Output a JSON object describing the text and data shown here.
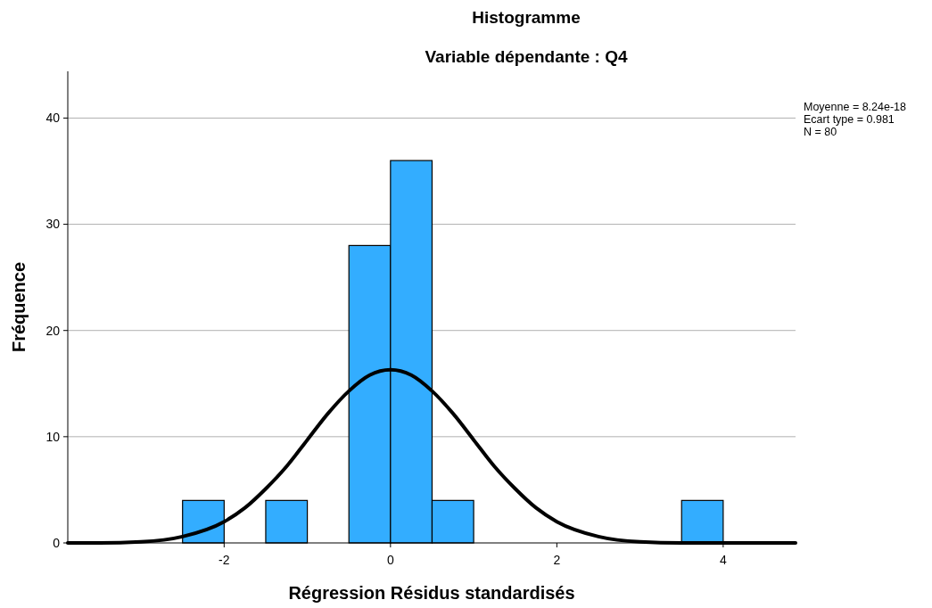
{
  "chart_data": {
    "type": "histogram",
    "title": "Histogramme",
    "subtitle": "Variable dépendante : Q4",
    "xlabel": "Régression Résidus standardisés",
    "ylabel": "Fréquence",
    "annotations": [
      "Moyenne = 8.24e-18",
      "Ecart type = 0.981",
      "N = 80"
    ],
    "xlim": [
      -3.88,
      4.87
    ],
    "xticks": [
      -2,
      0,
      2,
      4
    ],
    "ylim": [
      0,
      44.4
    ],
    "yticks": [
      0,
      10,
      20,
      30,
      40
    ],
    "grid": "y",
    "series": [
      {
        "color": "#33adff",
        "bins": [
          -2.5,
          -2,
          -1.5,
          -1,
          -0.5,
          0,
          0.5,
          1,
          1.5,
          2,
          2.5,
          3,
          3.5,
          4
        ],
        "values": [
          4,
          0,
          4,
          0,
          28,
          36,
          4,
          0,
          0,
          0,
          0,
          0,
          4
        ]
      },
      {
        "type": "line",
        "color": "#000000",
        "x": [
          -3.88,
          -3.5,
          -3,
          -2.5,
          -2,
          -1.75,
          -1.5,
          -1.25,
          -1,
          -0.75,
          -0.5,
          -0.25,
          0,
          0.25,
          0.5,
          0.75,
          1,
          1.25,
          1.5,
          1.75,
          2,
          2.5,
          3,
          3.5,
          4,
          4.87
        ],
        "values": [
          0,
          0,
          0.1,
          0.6,
          2,
          3.3,
          5.1,
          7.2,
          9.7,
          12.2,
          14.3,
          15.8,
          16.3,
          15.8,
          14.3,
          12.2,
          9.7,
          7.2,
          5.1,
          3.3,
          2,
          0.6,
          0.1,
          0,
          0,
          0
        ]
      }
    ]
  }
}
